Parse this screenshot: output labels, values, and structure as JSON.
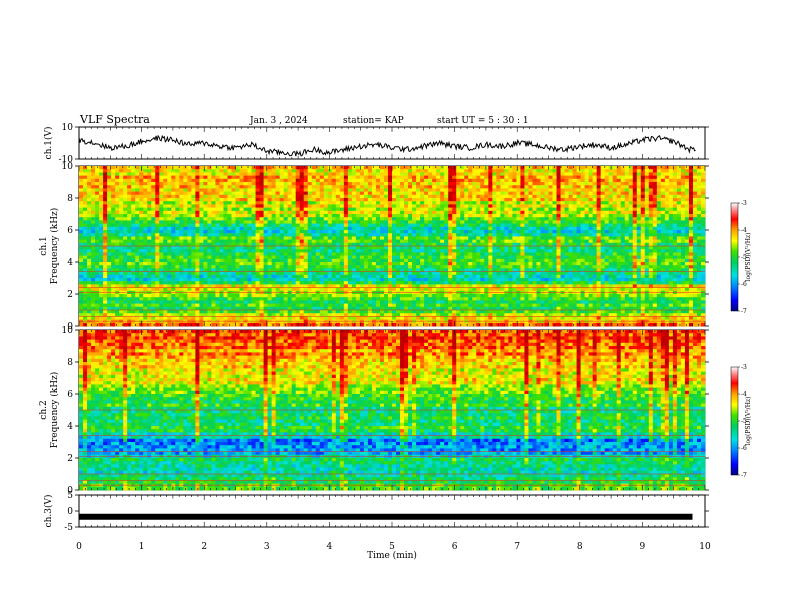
{
  "header": {
    "title": "VLF Spectra",
    "date": "Jan. 3 , 2024",
    "station": "station= KAP",
    "start": "start UT = 5 : 30 : 1"
  },
  "colors": {
    "trace": "#000000",
    "colormap": [
      "#000080",
      "#0000ff",
      "#0080ff",
      "#00e0e0",
      "#00d060",
      "#40e000",
      "#ffff00",
      "#ffa000",
      "#ff0000",
      "#c00000",
      "#ffffff"
    ]
  },
  "chart_data": [
    {
      "type": "line",
      "panel": "ch1-waveform",
      "ylabel": "ch.1(V)",
      "ylim": [
        -10,
        10
      ],
      "yticks": [
        "10",
        "-10"
      ],
      "xlim": [
        0,
        10
      ],
      "x_minutes": [
        0,
        0.25,
        0.5,
        0.75,
        1.0,
        1.25,
        1.5,
        1.75,
        2.0,
        2.25,
        2.5,
        2.75,
        3.0,
        3.25,
        3.5,
        3.75,
        4.0,
        4.25,
        4.5,
        4.75,
        5.0,
        5.25,
        5.5,
        5.75,
        6.0,
        6.25,
        6.5,
        6.75,
        7.0,
        7.25,
        7.5,
        7.75,
        8.0,
        8.25,
        8.5,
        8.75,
        9.0,
        9.25,
        9.5,
        9.75
      ],
      "values": [
        2,
        0,
        -3,
        -2,
        1,
        3,
        2,
        -1,
        0,
        -2,
        -3,
        -1,
        -5,
        -6,
        -7,
        -4,
        -6,
        -4,
        -2,
        -1,
        -3,
        -4,
        -2,
        0,
        -2,
        -3,
        -1,
        -2,
        0,
        -1,
        -3,
        -4,
        -2,
        -1,
        -3,
        -1,
        2,
        3,
        1,
        -4
      ]
    },
    {
      "type": "heatmap",
      "panel": "ch1-spectrogram",
      "ylabel": "ch.1 Frequency (kHz)",
      "ylim": [
        0,
        10
      ],
      "yticks": [
        "0",
        "2",
        "4",
        "6",
        "8",
        "10"
      ],
      "xlim": [
        0,
        10
      ],
      "colorbar": {
        "label": "log(PSD)(V²/Hz)",
        "range": [
          -7,
          -3
        ],
        "ticks": [
          "-3",
          "-4",
          "-5",
          "-6",
          "-7"
        ]
      },
      "band_profile_khz": [
        0,
        0.5,
        1,
        1.5,
        2,
        2.5,
        3,
        3.5,
        4,
        4.5,
        5,
        5.5,
        6,
        6.5,
        7,
        7.5,
        8,
        8.5,
        9,
        9.5,
        10
      ],
      "band_profile_log_psd": [
        -3.8,
        -4.4,
        -5.0,
        -5.1,
        -4.6,
        -4.4,
        -5.7,
        -5.3,
        -4.9,
        -5.2,
        -5.0,
        -4.9,
        -5.9,
        -4.9,
        -4.6,
        -4.4,
        -4.3,
        -4.2,
        -4.2,
        -4.1,
        -4.0
      ]
    },
    {
      "type": "heatmap",
      "panel": "ch2-spectrogram",
      "ylabel": "ch.2 Frequency (kHz)",
      "ylim": [
        0,
        10
      ],
      "yticks": [
        "0",
        "2",
        "4",
        "6",
        "8",
        "10"
      ],
      "xlim": [
        0,
        10
      ],
      "colorbar": {
        "label": "log(PSD)(V²/Hz)",
        "range": [
          -7,
          -3
        ],
        "ticks": [
          "-3",
          "-4",
          "-5",
          "-6",
          "-7"
        ]
      },
      "band_profile_khz": [
        0,
        0.5,
        1,
        1.5,
        2,
        2.5,
        3,
        3.5,
        4,
        4.5,
        5,
        5.5,
        6,
        6.5,
        7,
        7.5,
        8,
        8.5,
        9,
        9.5,
        10
      ],
      "band_profile_log_psd": [
        -4.6,
        -5.2,
        -5.4,
        -5.3,
        -5.2,
        -6.1,
        -6.2,
        -5.3,
        -5.0,
        -5.2,
        -5.2,
        -5.0,
        -4.8,
        -4.5,
        -4.3,
        -4.2,
        -4.1,
        -3.9,
        -3.8,
        -3.7,
        -3.6
      ]
    },
    {
      "type": "line",
      "panel": "ch3-waveform",
      "ylabel": "ch.3(V)",
      "ylim": [
        -5,
        5
      ],
      "yticks": [
        "5",
        "0",
        "-5"
      ],
      "xlim": [
        0,
        10
      ],
      "x_minutes": [
        0,
        9.8
      ],
      "values": [
        -1.8,
        -1.8
      ]
    }
  ],
  "x_axis": {
    "label": "Time (min)",
    "ticks": [
      "0",
      "1",
      "2",
      "3",
      "4",
      "5",
      "6",
      "7",
      "8",
      "9",
      "10"
    ]
  }
}
